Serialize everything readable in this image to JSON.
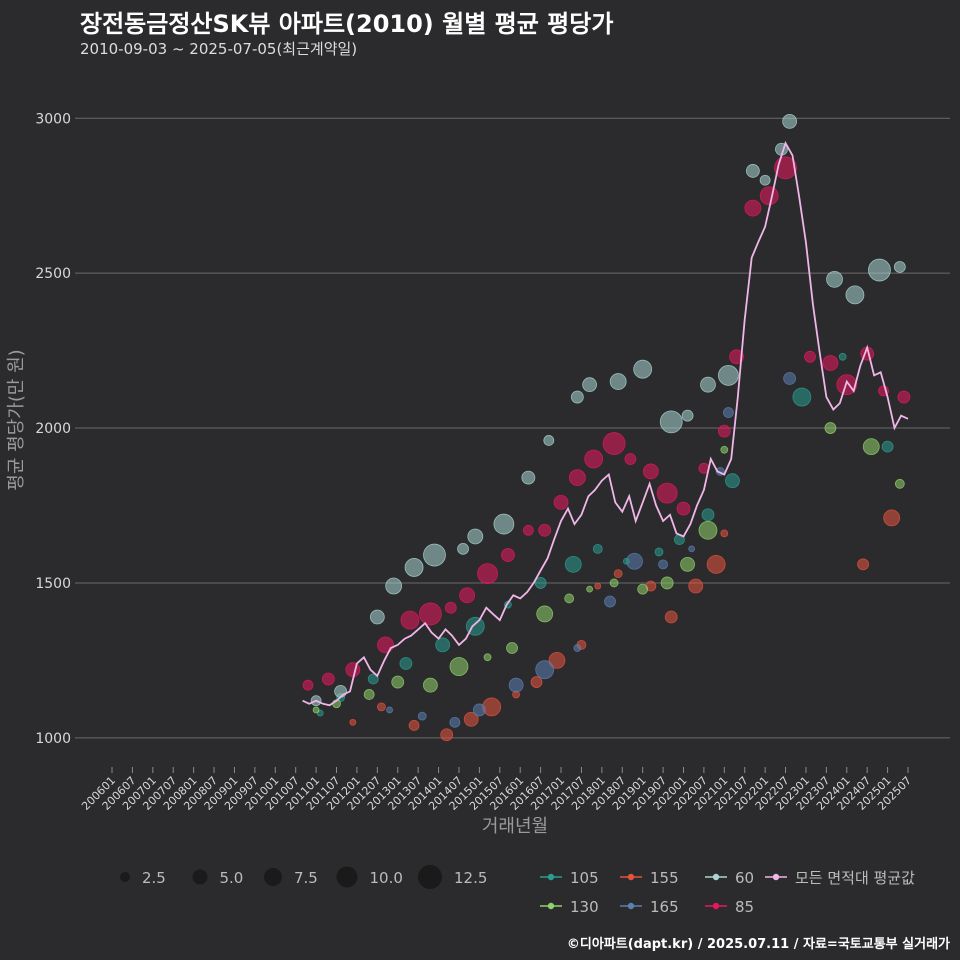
{
  "header": {
    "title": "장전동금정산SK뷰 아파트(2010) 월별 평균 평당가",
    "subtitle": "2010-09-03 ~ 2025-07-05(최근계약일)"
  },
  "caption": "©디아파트(dapt.kr) / 2025.07.11 / 자료=국토교통부 실거래가",
  "chart_data": {
    "type": "scatter",
    "xlabel": "거래년월",
    "ylabel": "평균 평당가(만 원)",
    "ylim": [
      880,
      3130
    ],
    "yticks": [
      1000,
      1500,
      2000,
      2500,
      3000
    ],
    "xticks": [
      "200601",
      "200607",
      "200701",
      "200707",
      "200801",
      "200807",
      "200901",
      "200907",
      "201001",
      "201007",
      "201101",
      "201107",
      "201201",
      "201207",
      "201301",
      "201307",
      "201401",
      "201407",
      "201501",
      "201507",
      "201601",
      "201607",
      "201701",
      "201707",
      "201801",
      "201807",
      "201901",
      "201907",
      "202001",
      "202007",
      "202101",
      "202107",
      "202201",
      "202207",
      "202301",
      "202307",
      "202401",
      "202407",
      "202501",
      "202507"
    ],
    "grid": true,
    "size_legend": {
      "values": [
        "2.5",
        "5.0",
        "7.5",
        "10.0",
        "12.5"
      ]
    },
    "legend_position": "bottom",
    "colors": {
      "105": "#2a9d8f",
      "130": "#8fd16a",
      "155": "#e5533d",
      "165": "#5b80b2",
      "60": "#a8d5d1",
      "85": "#e8175d",
      "avg": "#f0b6e8"
    },
    "series": [
      {
        "name": "105",
        "points": [
          [
            2011.1,
            1080
          ],
          [
            2011.6,
            1130
          ],
          [
            2012.4,
            1190
          ],
          [
            2013.2,
            1240
          ],
          [
            2014.1,
            1300
          ],
          [
            2014.9,
            1360
          ],
          [
            2015.7,
            1430
          ],
          [
            2016.5,
            1500
          ],
          [
            2017.3,
            1560
          ],
          [
            2017.9,
            1610
          ],
          [
            2018.6,
            1570
          ],
          [
            2019.4,
            1600
          ],
          [
            2019.9,
            1640
          ],
          [
            2020.6,
            1720
          ],
          [
            2021.2,
            1830
          ],
          [
            2022.9,
            2100
          ],
          [
            2023.9,
            2230
          ],
          [
            2025.0,
            1940
          ]
        ]
      },
      {
        "name": "130",
        "points": [
          [
            2011.0,
            1090
          ],
          [
            2011.5,
            1110
          ],
          [
            2012.3,
            1140
          ],
          [
            2013.0,
            1180
          ],
          [
            2013.8,
            1170
          ],
          [
            2014.5,
            1230
          ],
          [
            2015.2,
            1260
          ],
          [
            2015.8,
            1290
          ],
          [
            2016.6,
            1400
          ],
          [
            2017.2,
            1450
          ],
          [
            2017.7,
            1480
          ],
          [
            2018.3,
            1500
          ],
          [
            2019.0,
            1480
          ],
          [
            2019.6,
            1500
          ],
          [
            2020.1,
            1560
          ],
          [
            2020.6,
            1670
          ],
          [
            2021.0,
            1930
          ],
          [
            2023.6,
            2000
          ],
          [
            2024.6,
            1940
          ],
          [
            2025.3,
            1820
          ]
        ]
      },
      {
        "name": "155",
        "points": [
          [
            2011.9,
            1050
          ],
          [
            2012.6,
            1100
          ],
          [
            2013.4,
            1040
          ],
          [
            2014.2,
            1010
          ],
          [
            2014.8,
            1060
          ],
          [
            2015.3,
            1100
          ],
          [
            2015.9,
            1140
          ],
          [
            2016.4,
            1180
          ],
          [
            2016.9,
            1250
          ],
          [
            2017.5,
            1300
          ],
          [
            2017.9,
            1490
          ],
          [
            2018.4,
            1530
          ],
          [
            2019.2,
            1490
          ],
          [
            2019.7,
            1390
          ],
          [
            2020.3,
            1490
          ],
          [
            2020.8,
            1560
          ],
          [
            2021.0,
            1660
          ],
          [
            2024.4,
            1560
          ],
          [
            2025.1,
            1710
          ]
        ]
      },
      {
        "name": "165",
        "points": [
          [
            2012.8,
            1090
          ],
          [
            2013.6,
            1070
          ],
          [
            2014.4,
            1050
          ],
          [
            2015.0,
            1090
          ],
          [
            2015.9,
            1170
          ],
          [
            2016.6,
            1220
          ],
          [
            2017.4,
            1290
          ],
          [
            2018.2,
            1440
          ],
          [
            2018.8,
            1570
          ],
          [
            2019.5,
            1560
          ],
          [
            2020.2,
            1610
          ],
          [
            2020.9,
            1860
          ],
          [
            2021.1,
            2050
          ],
          [
            2022.6,
            2160
          ]
        ]
      },
      {
        "name": "60",
        "points": [
          [
            2011.0,
            1120
          ],
          [
            2011.6,
            1150
          ],
          [
            2012.5,
            1390
          ],
          [
            2012.9,
            1490
          ],
          [
            2013.4,
            1550
          ],
          [
            2013.9,
            1590
          ],
          [
            2014.6,
            1610
          ],
          [
            2014.9,
            1650
          ],
          [
            2015.6,
            1690
          ],
          [
            2016.2,
            1840
          ],
          [
            2016.7,
            1960
          ],
          [
            2017.4,
            2100
          ],
          [
            2017.7,
            2140
          ],
          [
            2018.4,
            2150
          ],
          [
            2019.0,
            2190
          ],
          [
            2019.7,
            2020
          ],
          [
            2020.1,
            2040
          ],
          [
            2020.6,
            2140
          ],
          [
            2021.1,
            2170
          ],
          [
            2021.7,
            2830
          ],
          [
            2022.0,
            2800
          ],
          [
            2022.4,
            2900
          ],
          [
            2022.6,
            2990
          ],
          [
            2023.7,
            2480
          ],
          [
            2024.2,
            2430
          ],
          [
            2024.8,
            2510
          ],
          [
            2025.3,
            2520
          ]
        ]
      },
      {
        "name": "85",
        "points": [
          [
            2010.8,
            1170
          ],
          [
            2011.3,
            1190
          ],
          [
            2011.9,
            1220
          ],
          [
            2012.7,
            1300
          ],
          [
            2013.3,
            1380
          ],
          [
            2013.8,
            1400
          ],
          [
            2014.3,
            1420
          ],
          [
            2014.7,
            1460
          ],
          [
            2015.2,
            1530
          ],
          [
            2015.7,
            1590
          ],
          [
            2016.2,
            1670
          ],
          [
            2016.6,
            1670
          ],
          [
            2017.0,
            1760
          ],
          [
            2017.4,
            1840
          ],
          [
            2017.8,
            1900
          ],
          [
            2018.3,
            1950
          ],
          [
            2018.7,
            1900
          ],
          [
            2019.2,
            1860
          ],
          [
            2019.6,
            1790
          ],
          [
            2020.0,
            1740
          ],
          [
            2020.5,
            1870
          ],
          [
            2021.0,
            1990
          ],
          [
            2021.3,
            2230
          ],
          [
            2021.7,
            2710
          ],
          [
            2022.1,
            2750
          ],
          [
            2022.5,
            2840
          ],
          [
            2023.1,
            2230
          ],
          [
            2023.6,
            2210
          ],
          [
            2024.0,
            2140
          ],
          [
            2024.5,
            2240
          ],
          [
            2024.9,
            2120
          ],
          [
            2025.4,
            2100
          ]
        ]
      }
    ],
    "average": {
      "name": "모든 면적대 평균값",
      "points": [
        [
          2010.67,
          1120
        ],
        [
          2010.83,
          1110
        ],
        [
          2011.0,
          1120
        ],
        [
          2011.17,
          1110
        ],
        [
          2011.33,
          1105
        ],
        [
          2011.5,
          1120
        ],
        [
          2011.67,
          1140
        ],
        [
          2011.83,
          1150
        ],
        [
          2012.0,
          1240
        ],
        [
          2012.17,
          1260
        ],
        [
          2012.33,
          1220
        ],
        [
          2012.5,
          1200
        ],
        [
          2012.67,
          1250
        ],
        [
          2012.83,
          1290
        ],
        [
          2013.0,
          1300
        ],
        [
          2013.17,
          1320
        ],
        [
          2013.33,
          1330
        ],
        [
          2013.5,
          1350
        ],
        [
          2013.67,
          1370
        ],
        [
          2013.83,
          1340
        ],
        [
          2014.0,
          1320
        ],
        [
          2014.17,
          1350
        ],
        [
          2014.33,
          1330
        ],
        [
          2014.5,
          1300
        ],
        [
          2014.67,
          1320
        ],
        [
          2014.83,
          1360
        ],
        [
          2015.0,
          1380
        ],
        [
          2015.17,
          1420
        ],
        [
          2015.33,
          1400
        ],
        [
          2015.5,
          1380
        ],
        [
          2015.67,
          1430
        ],
        [
          2015.83,
          1460
        ],
        [
          2016.0,
          1450
        ],
        [
          2016.17,
          1470
        ],
        [
          2016.33,
          1500
        ],
        [
          2016.5,
          1540
        ],
        [
          2016.67,
          1580
        ],
        [
          2016.83,
          1640
        ],
        [
          2017.0,
          1700
        ],
        [
          2017.17,
          1740
        ],
        [
          2017.33,
          1690
        ],
        [
          2017.5,
          1720
        ],
        [
          2017.67,
          1780
        ],
        [
          2017.83,
          1800
        ],
        [
          2018.0,
          1830
        ],
        [
          2018.17,
          1850
        ],
        [
          2018.33,
          1760
        ],
        [
          2018.5,
          1730
        ],
        [
          2018.67,
          1780
        ],
        [
          2018.83,
          1700
        ],
        [
          2019.0,
          1760
        ],
        [
          2019.17,
          1820
        ],
        [
          2019.33,
          1750
        ],
        [
          2019.5,
          1700
        ],
        [
          2019.67,
          1720
        ],
        [
          2019.83,
          1660
        ],
        [
          2020.0,
          1650
        ],
        [
          2020.17,
          1690
        ],
        [
          2020.33,
          1750
        ],
        [
          2020.5,
          1800
        ],
        [
          2020.67,
          1900
        ],
        [
          2020.83,
          1860
        ],
        [
          2021.0,
          1850
        ],
        [
          2021.17,
          1900
        ],
        [
          2021.33,
          2100
        ],
        [
          2021.5,
          2350
        ],
        [
          2021.67,
          2550
        ],
        [
          2021.83,
          2600
        ],
        [
          2022.0,
          2650
        ],
        [
          2022.17,
          2750
        ],
        [
          2022.33,
          2850
        ],
        [
          2022.5,
          2920
        ],
        [
          2022.67,
          2880
        ],
        [
          2022.83,
          2750
        ],
        [
          2023.0,
          2600
        ],
        [
          2023.17,
          2400
        ],
        [
          2023.33,
          2250
        ],
        [
          2023.5,
          2100
        ],
        [
          2023.67,
          2060
        ],
        [
          2023.83,
          2080
        ],
        [
          2024.0,
          2150
        ],
        [
          2024.17,
          2120
        ],
        [
          2024.33,
          2200
        ],
        [
          2024.5,
          2260
        ],
        [
          2024.67,
          2170
        ],
        [
          2024.83,
          2180
        ],
        [
          2025.0,
          2100
        ],
        [
          2025.17,
          2000
        ],
        [
          2025.33,
          2040
        ],
        [
          2025.5,
          2030
        ]
      ]
    }
  }
}
